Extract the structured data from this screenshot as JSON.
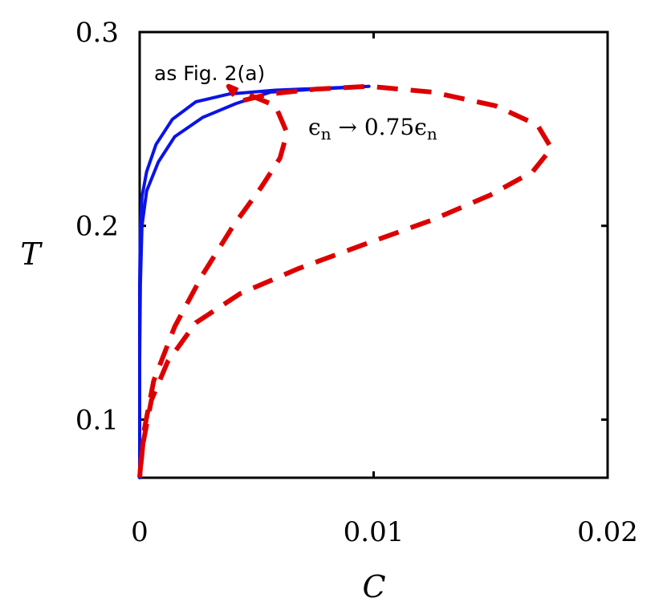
{
  "chart_data": {
    "type": "line",
    "xlabel": "C",
    "ylabel": "T",
    "xlim": [
      0,
      0.02
    ],
    "ylim": [
      0.07,
      0.3
    ],
    "xticks": [
      {
        "value": 0,
        "label": "0"
      },
      {
        "value": 0.01,
        "label": "0.01"
      },
      {
        "value": 0.02,
        "label": "0.02"
      }
    ],
    "yticks": [
      {
        "value": 0.1,
        "label": "0.1"
      },
      {
        "value": 0.2,
        "label": "0.2"
      },
      {
        "value": 0.3,
        "label": "0.3"
      }
    ],
    "grid": false,
    "series": [
      {
        "name": "as Fig. 2(a)",
        "color": "#0a14e6",
        "dash": "solid",
        "points": [
          [
            0,
            0.07
          ],
          [
            0,
            0.12
          ],
          [
            0,
            0.17
          ],
          [
            3e-05,
            0.2
          ],
          [
            0.0001,
            0.215
          ],
          [
            0.0003,
            0.228
          ],
          [
            0.0007,
            0.242
          ],
          [
            0.0014,
            0.255
          ],
          [
            0.0024,
            0.264
          ],
          [
            0.0038,
            0.268
          ],
          [
            0.0058,
            0.27
          ],
          [
            0.0078,
            0.271
          ],
          [
            0.0098,
            0.272
          ],
          [
            0.0075,
            0.2705
          ],
          [
            0.0056,
            0.269
          ],
          [
            0.0041,
            0.263
          ],
          [
            0.0027,
            0.256
          ],
          [
            0.0015,
            0.246
          ],
          [
            0.0008,
            0.233
          ],
          [
            0.0003,
            0.218
          ],
          [
            0.0001,
            0.2
          ],
          [
            3e-05,
            0.17
          ],
          [
            0,
            0.13
          ],
          [
            0,
            0.1
          ],
          [
            0,
            0.07
          ]
        ]
      },
      {
        "name": "ε_n → 0.75ε_n",
        "color": "#dd0000",
        "dash": "dashed",
        "points": [
          [
            0,
            0.07
          ],
          [
            0.0001,
            0.085
          ],
          [
            0.0005,
            0.11
          ],
          [
            0.0012,
            0.13
          ],
          [
            0.0024,
            0.15
          ],
          [
            0.0043,
            0.165
          ],
          [
            0.0068,
            0.178
          ],
          [
            0.0095,
            0.19
          ],
          [
            0.0125,
            0.203
          ],
          [
            0.015,
            0.216
          ],
          [
            0.0168,
            0.228
          ],
          [
            0.0176,
            0.24
          ],
          [
            0.017,
            0.252
          ],
          [
            0.0152,
            0.262
          ],
          [
            0.0125,
            0.269
          ],
          [
            0.0098,
            0.272
          ],
          [
            0.0075,
            0.2705
          ],
          [
            0.0055,
            0.268
          ],
          [
            0.0042,
            0.264
          ],
          [
            0.0038,
            0.272
          ],
          [
            0.0058,
            0.262
          ],
          [
            0.0063,
            0.248
          ],
          [
            0.006,
            0.235
          ],
          [
            0.0052,
            0.22
          ],
          [
            0.004,
            0.2
          ],
          [
            0.0027,
            0.175
          ],
          [
            0.0015,
            0.148
          ],
          [
            0.0006,
            0.12
          ],
          [
            0.0002,
            0.095
          ],
          [
            0,
            0.07
          ]
        ]
      }
    ],
    "annotations": [
      {
        "text": "as Fig. 2(a)",
        "x": 0.0004,
        "y": 0.278
      },
      {
        "text": "ε_n → 0.75ε_n",
        "x": 0.0072,
        "y": 0.245
      }
    ]
  },
  "text": {
    "annotation_fig": "as Fig. 2(a)",
    "annotation_eps": "ϵ",
    "annotation_sub1": "n",
    "annotation_arrow": " → 0.75ϵ",
    "annotation_sub2": "n"
  }
}
